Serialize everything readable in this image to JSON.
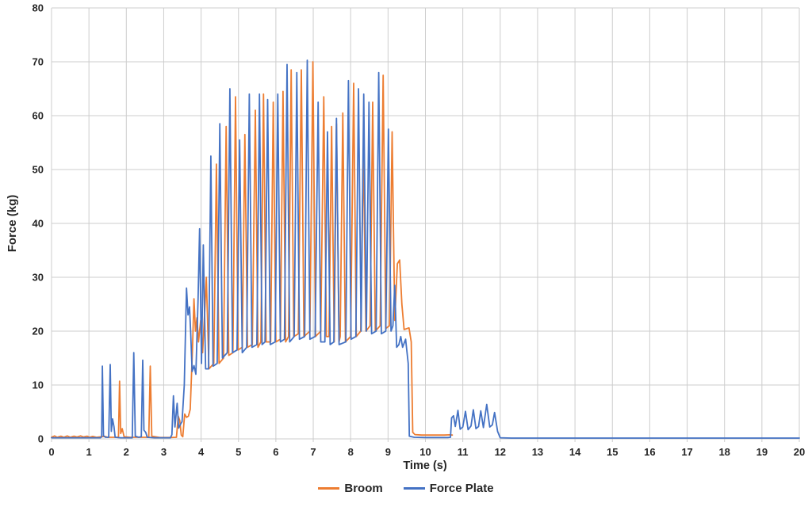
{
  "chart_data": {
    "type": "line",
    "title": "",
    "xlabel": "Time (s)",
    "ylabel": "Force (kg)",
    "xlim": [
      0,
      20
    ],
    "ylim": [
      0,
      80
    ],
    "x_ticks": [
      0,
      1,
      2,
      3,
      4,
      5,
      6,
      7,
      8,
      9,
      10,
      11,
      12,
      13,
      14,
      15,
      16,
      17,
      18,
      19,
      20
    ],
    "y_ticks": [
      0,
      10,
      20,
      30,
      40,
      50,
      60,
      70,
      80
    ],
    "grid": true,
    "legend_position": "bottom-center",
    "series": [
      {
        "name": "Broom",
        "color": "#ED7D31",
        "points": [
          [
            0,
            0.3
          ],
          [
            0.08,
            0.55
          ],
          [
            0.15,
            0.3
          ],
          [
            0.25,
            0.5
          ],
          [
            0.33,
            0.3
          ],
          [
            0.42,
            0.55
          ],
          [
            0.5,
            0.3
          ],
          [
            0.6,
            0.5
          ],
          [
            0.68,
            0.35
          ],
          [
            0.78,
            0.55
          ],
          [
            0.85,
            0.35
          ],
          [
            0.95,
            0.5
          ],
          [
            1.02,
            0.3
          ],
          [
            1.1,
            0.45
          ],
          [
            1.2,
            0.3
          ],
          [
            1.42,
            0.45
          ],
          [
            1.5,
            0.3
          ],
          [
            1.65,
            0.3
          ],
          [
            1.79,
            0.3
          ],
          [
            1.82,
            10.7
          ],
          [
            1.85,
            1.0
          ],
          [
            1.89,
            1.9
          ],
          [
            1.94,
            0.4
          ],
          [
            2.1,
            0.3
          ],
          [
            2.35,
            0.3
          ],
          [
            2.6,
            0.3
          ],
          [
            2.64,
            13.5
          ],
          [
            2.68,
            0.5
          ],
          [
            2.9,
            0.25
          ],
          [
            3.15,
            0.25
          ],
          [
            3.34,
            0.3
          ],
          [
            3.39,
            4.2
          ],
          [
            3.43,
            3.4
          ],
          [
            3.47,
            0.7
          ],
          [
            3.51,
            0.4
          ],
          [
            3.56,
            4.6
          ],
          [
            3.61,
            4.0
          ],
          [
            3.66,
            4.2
          ],
          [
            3.71,
            5.5
          ],
          [
            3.77,
            17
          ],
          [
            3.81,
            26
          ],
          [
            3.85,
            20
          ],
          [
            3.89,
            22.5
          ],
          [
            3.93,
            18
          ],
          [
            3.99,
            22
          ],
          [
            4.04,
            16
          ],
          [
            4.1,
            24
          ],
          [
            4.14,
            30
          ],
          [
            4.21,
            13
          ],
          [
            4.34,
            14
          ],
          [
            4.41,
            51
          ],
          [
            4.48,
            14
          ],
          [
            4.6,
            15
          ],
          [
            4.67,
            58
          ],
          [
            4.74,
            15.5
          ],
          [
            4.85,
            16
          ],
          [
            4.92,
            63.5
          ],
          [
            4.99,
            16.5
          ],
          [
            5.1,
            17
          ],
          [
            5.17,
            56.5
          ],
          [
            5.24,
            17
          ],
          [
            5.37,
            17.5
          ],
          [
            5.45,
            61
          ],
          [
            5.52,
            17
          ],
          [
            5.6,
            18
          ],
          [
            5.67,
            64
          ],
          [
            5.74,
            18
          ],
          [
            5.86,
            18
          ],
          [
            5.93,
            62.5
          ],
          [
            6.0,
            18
          ],
          [
            6.12,
            18.5
          ],
          [
            6.19,
            64.5
          ],
          [
            6.26,
            18
          ],
          [
            6.34,
            19
          ],
          [
            6.41,
            68.5
          ],
          [
            6.48,
            19
          ],
          [
            6.6,
            19.5
          ],
          [
            6.68,
            68.5
          ],
          [
            6.75,
            19
          ],
          [
            6.91,
            20
          ],
          [
            6.99,
            70
          ],
          [
            7.06,
            19
          ],
          [
            7.2,
            20
          ],
          [
            7.28,
            63.5
          ],
          [
            7.35,
            19
          ],
          [
            7.42,
            19
          ],
          [
            7.49,
            58
          ],
          [
            7.56,
            18
          ],
          [
            7.62,
            58.5
          ],
          [
            7.69,
            18
          ],
          [
            7.72,
            19
          ],
          [
            7.79,
            60.5
          ],
          [
            7.86,
            18
          ],
          [
            8.0,
            19
          ],
          [
            8.08,
            66
          ],
          [
            8.15,
            19
          ],
          [
            8.27,
            20
          ],
          [
            8.34,
            54
          ],
          [
            8.41,
            20
          ],
          [
            8.52,
            21
          ],
          [
            8.59,
            62.5
          ],
          [
            8.66,
            20
          ],
          [
            8.79,
            21
          ],
          [
            8.87,
            67.5
          ],
          [
            8.94,
            20.5
          ],
          [
            9.04,
            21
          ],
          [
            9.11,
            57
          ],
          [
            9.18,
            22
          ],
          [
            9.25,
            32.5
          ],
          [
            9.31,
            33.2
          ],
          [
            9.37,
            25
          ],
          [
            9.43,
            20.3
          ],
          [
            9.56,
            20.6
          ],
          [
            9.62,
            18
          ],
          [
            9.66,
            1.2
          ],
          [
            9.72,
            0.8
          ],
          [
            9.9,
            0.7
          ],
          [
            10.1,
            0.7
          ],
          [
            10.3,
            0.7
          ],
          [
            10.5,
            0.7
          ],
          [
            10.65,
            0.75
          ],
          [
            10.72,
            0.7
          ]
        ]
      },
      {
        "name": "Force Plate",
        "color": "#4472C4",
        "points": [
          [
            0,
            0.2
          ],
          [
            0.3,
            0.2
          ],
          [
            0.6,
            0.2
          ],
          [
            0.9,
            0.2
          ],
          [
            1.2,
            0.2
          ],
          [
            1.31,
            0.2
          ],
          [
            1.34,
            0.4
          ],
          [
            1.36,
            13.5
          ],
          [
            1.39,
            0.6
          ],
          [
            1.44,
            0.3
          ],
          [
            1.53,
            0.3
          ],
          [
            1.57,
            13.8
          ],
          [
            1.6,
            1.4
          ],
          [
            1.63,
            3.7
          ],
          [
            1.67,
            2.3
          ],
          [
            1.7,
            0.3
          ],
          [
            1.85,
            0.2
          ],
          [
            2.05,
            0.2
          ],
          [
            2.16,
            0.2
          ],
          [
            2.2,
            16
          ],
          [
            2.24,
            0.5
          ],
          [
            2.33,
            0.3
          ],
          [
            2.4,
            0.4
          ],
          [
            2.44,
            14.6
          ],
          [
            2.47,
            1.6
          ],
          [
            2.52,
            1.2
          ],
          [
            2.56,
            0.3
          ],
          [
            2.75,
            0.2
          ],
          [
            3.0,
            0.2
          ],
          [
            3.18,
            0.2
          ],
          [
            3.22,
            0.8
          ],
          [
            3.26,
            8
          ],
          [
            3.3,
            2.2
          ],
          [
            3.36,
            6.6
          ],
          [
            3.4,
            2.0
          ],
          [
            3.44,
            2.6
          ],
          [
            3.49,
            3.2
          ],
          [
            3.55,
            10
          ],
          [
            3.61,
            28
          ],
          [
            3.65,
            23
          ],
          [
            3.69,
            24.5
          ],
          [
            3.72,
            20
          ],
          [
            3.76,
            12.5
          ],
          [
            3.81,
            13.6
          ],
          [
            3.86,
            12
          ],
          [
            3.92,
            26
          ],
          [
            3.96,
            39
          ],
          [
            4.01,
            14
          ],
          [
            4.06,
            36
          ],
          [
            4.12,
            13
          ],
          [
            4.2,
            13
          ],
          [
            4.26,
            52.5
          ],
          [
            4.32,
            13.5
          ],
          [
            4.43,
            14
          ],
          [
            4.5,
            58.5
          ],
          [
            4.57,
            15
          ],
          [
            4.7,
            16
          ],
          [
            4.77,
            65
          ],
          [
            4.84,
            16
          ],
          [
            4.96,
            16.5
          ],
          [
            5.03,
            55.5
          ],
          [
            5.1,
            16
          ],
          [
            5.22,
            17
          ],
          [
            5.29,
            64
          ],
          [
            5.36,
            17
          ],
          [
            5.49,
            17.5
          ],
          [
            5.56,
            64
          ],
          [
            5.63,
            17.5
          ],
          [
            5.71,
            18
          ],
          [
            5.78,
            63
          ],
          [
            5.85,
            17.5
          ],
          [
            5.98,
            18
          ],
          [
            6.05,
            64
          ],
          [
            6.12,
            18
          ],
          [
            6.23,
            18.5
          ],
          [
            6.3,
            69.5
          ],
          [
            6.37,
            18
          ],
          [
            6.49,
            19
          ],
          [
            6.56,
            68
          ],
          [
            6.63,
            18.5
          ],
          [
            6.77,
            19
          ],
          [
            6.84,
            70.3
          ],
          [
            6.91,
            18.5
          ],
          [
            7.05,
            19
          ],
          [
            7.13,
            62.5
          ],
          [
            7.2,
            18
          ],
          [
            7.31,
            18
          ],
          [
            7.38,
            57
          ],
          [
            7.45,
            17.5
          ],
          [
            7.55,
            18
          ],
          [
            7.62,
            59.5
          ],
          [
            7.69,
            17.5
          ],
          [
            7.87,
            18
          ],
          [
            7.94,
            66.5
          ],
          [
            8.01,
            18.5
          ],
          [
            8.14,
            19
          ],
          [
            8.21,
            65
          ],
          [
            8.28,
            20
          ],
          [
            8.35,
            64
          ],
          [
            8.42,
            20
          ],
          [
            8.49,
            62.5
          ],
          [
            8.56,
            19.5
          ],
          [
            8.68,
            20
          ],
          [
            8.75,
            68
          ],
          [
            8.82,
            19.5
          ],
          [
            8.94,
            20
          ],
          [
            9.01,
            57.5
          ],
          [
            9.08,
            20
          ],
          [
            9.13,
            21
          ],
          [
            9.18,
            28.5
          ],
          [
            9.23,
            17
          ],
          [
            9.29,
            17.5
          ],
          [
            9.34,
            19
          ],
          [
            9.39,
            17
          ],
          [
            9.47,
            18.5
          ],
          [
            9.54,
            14
          ],
          [
            9.57,
            0.5
          ],
          [
            9.7,
            0.3
          ],
          [
            10.0,
            0.25
          ],
          [
            10.3,
            0.25
          ],
          [
            10.6,
            0.25
          ],
          [
            10.67,
            0.3
          ],
          [
            10.7,
            3.9
          ],
          [
            10.75,
            4.3
          ],
          [
            10.8,
            2.3
          ],
          [
            10.87,
            5.3
          ],
          [
            10.93,
            1.8
          ],
          [
            11.0,
            2.2
          ],
          [
            11.07,
            5.1
          ],
          [
            11.14,
            1.7
          ],
          [
            11.22,
            2.4
          ],
          [
            11.28,
            5.4
          ],
          [
            11.35,
            1.9
          ],
          [
            11.42,
            2.3
          ],
          [
            11.48,
            5.2
          ],
          [
            11.55,
            2.1
          ],
          [
            11.64,
            6.4
          ],
          [
            11.72,
            2.2
          ],
          [
            11.79,
            2.6
          ],
          [
            11.85,
            4.9
          ],
          [
            11.93,
            1.4
          ],
          [
            12.0,
            0.2
          ],
          [
            12.3,
            0.15
          ],
          [
            13,
            0.15
          ],
          [
            14,
            0.15
          ],
          [
            15,
            0.15
          ],
          [
            16,
            0.15
          ],
          [
            17,
            0.15
          ],
          [
            18,
            0.15
          ],
          [
            19,
            0.15
          ],
          [
            20,
            0.15
          ]
        ]
      }
    ]
  },
  "legend": {
    "items": [
      {
        "label": "Broom",
        "color": "#ED7D31"
      },
      {
        "label": "Force Plate",
        "color": "#4472C4"
      }
    ]
  }
}
